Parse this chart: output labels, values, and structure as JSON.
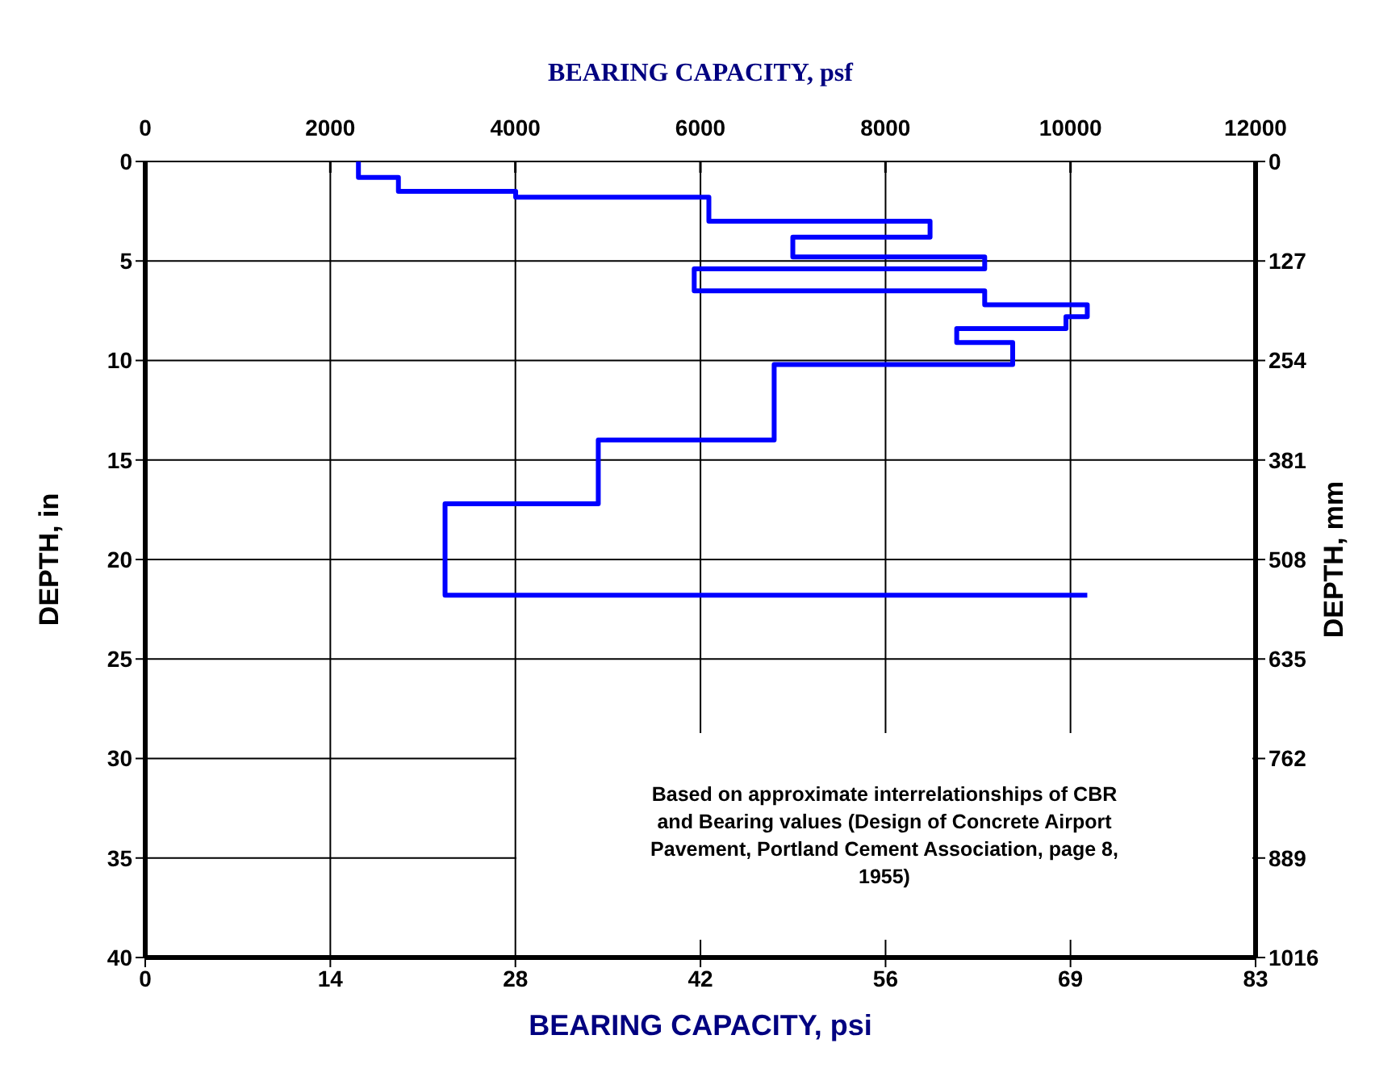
{
  "chart_data": {
    "type": "line",
    "x2label": "BEARING CAPACITY, psf",
    "xlabel": "BEARING CAPACITY, psi",
    "ylabel": "DEPTH, in",
    "y2label": "DEPTH, mm",
    "x2lim": [
      0,
      12000
    ],
    "x2ticks": [
      0,
      2000,
      4000,
      6000,
      8000,
      10000,
      12000
    ],
    "xlim": [
      0,
      83.33
    ],
    "xticks": [
      0,
      {
        "value": 13.89,
        "label": "14"
      },
      {
        "value": 27.78,
        "label": "28"
      },
      {
        "value": 41.67,
        "label": "42"
      },
      {
        "value": 55.56,
        "label": "56"
      },
      {
        "value": 69.44,
        "label": "69"
      },
      {
        "value": 83.33,
        "label": "83"
      }
    ],
    "ylim": [
      40,
      0
    ],
    "yticks": [
      0,
      5,
      10,
      15,
      20,
      25,
      30,
      35,
      40
    ],
    "y2lim": [
      1016,
      0
    ],
    "y2ticks": [
      0,
      127,
      254,
      381,
      508,
      635,
      762,
      889,
      1016
    ],
    "grid": true,
    "line_style": "solid",
    "annotations": [
      "Based on approximate interrelationships of CBR and Bearing values (Design of Concrete Airport Pavement, Portland Cement Association, page 8, 1955)"
    ],
    "series": [
      {
        "color": "#0000ff",
        "x": [
          16.0,
          16.0,
          19.0,
          19.0,
          27.8,
          27.8,
          42.3,
          42.3,
          58.9,
          58.9,
          48.6,
          48.6,
          63.0,
          63.0,
          41.2,
          41.2,
          63.0,
          63.0,
          70.7,
          70.7,
          69.1,
          69.1,
          60.9,
          60.9,
          65.1,
          65.1,
          47.2,
          47.2,
          34.0,
          34.0,
          22.5,
          22.5,
          70.7
        ],
        "values": [
          0,
          0.8,
          0.8,
          1.5,
          1.5,
          1.8,
          1.8,
          3,
          3,
          3.8,
          3.8,
          4.8,
          4.8,
          5.4,
          5.4,
          6.5,
          6.5,
          7.2,
          7.2,
          7.8,
          7.8,
          8.4,
          8.4,
          9.1,
          9.1,
          10.2,
          10.2,
          14,
          14,
          17.2,
          17.2,
          21.8,
          21.8
        ]
      }
    ]
  }
}
